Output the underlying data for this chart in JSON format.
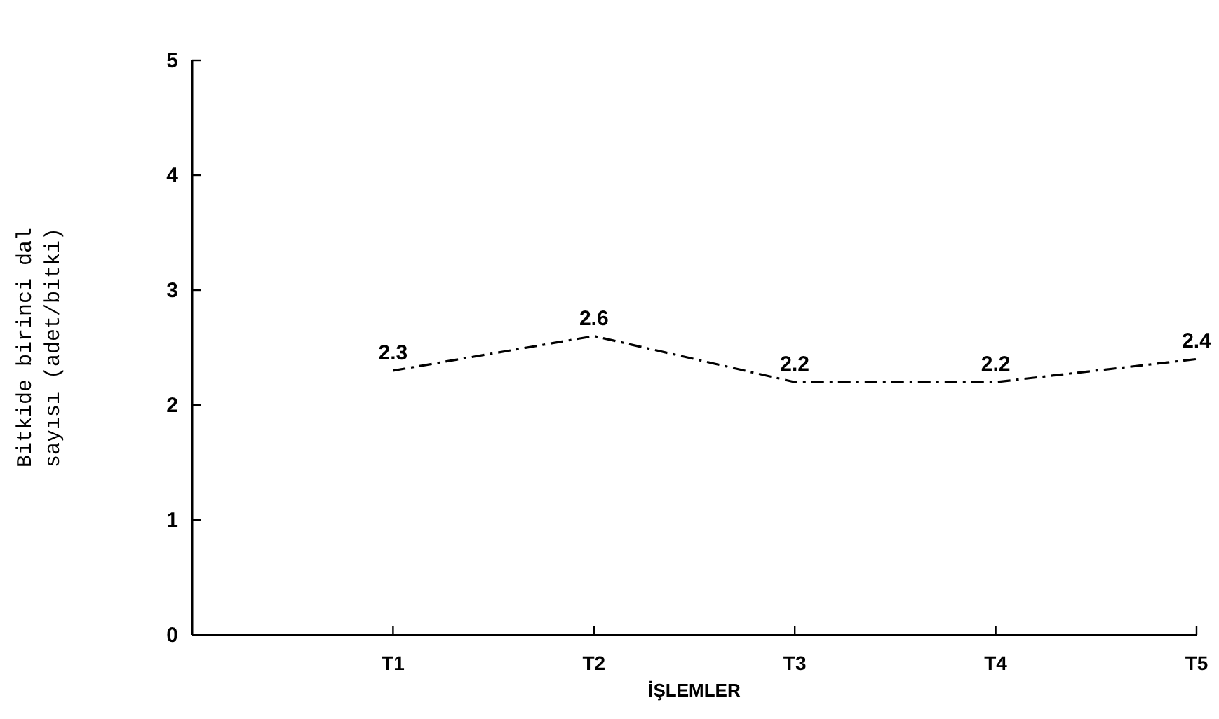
{
  "chart_data": {
    "type": "line",
    "xlabel": "İŞLEMLER",
    "ylabel": "Bitkide birinci dal sayısı (adet/bitki)",
    "categories": [
      "T1",
      "T2",
      "T3",
      "T4",
      "T5"
    ],
    "series": [
      {
        "color": "#000000",
        "values": [
          2.3,
          2.6,
          2.2,
          2.2,
          2.4
        ]
      }
    ],
    "ylim": [
      0,
      5
    ],
    "yticks": [
      0,
      1,
      2,
      3,
      4,
      5
    ],
    "data_labels": true,
    "line_style": "dashed",
    "marker": "none"
  }
}
